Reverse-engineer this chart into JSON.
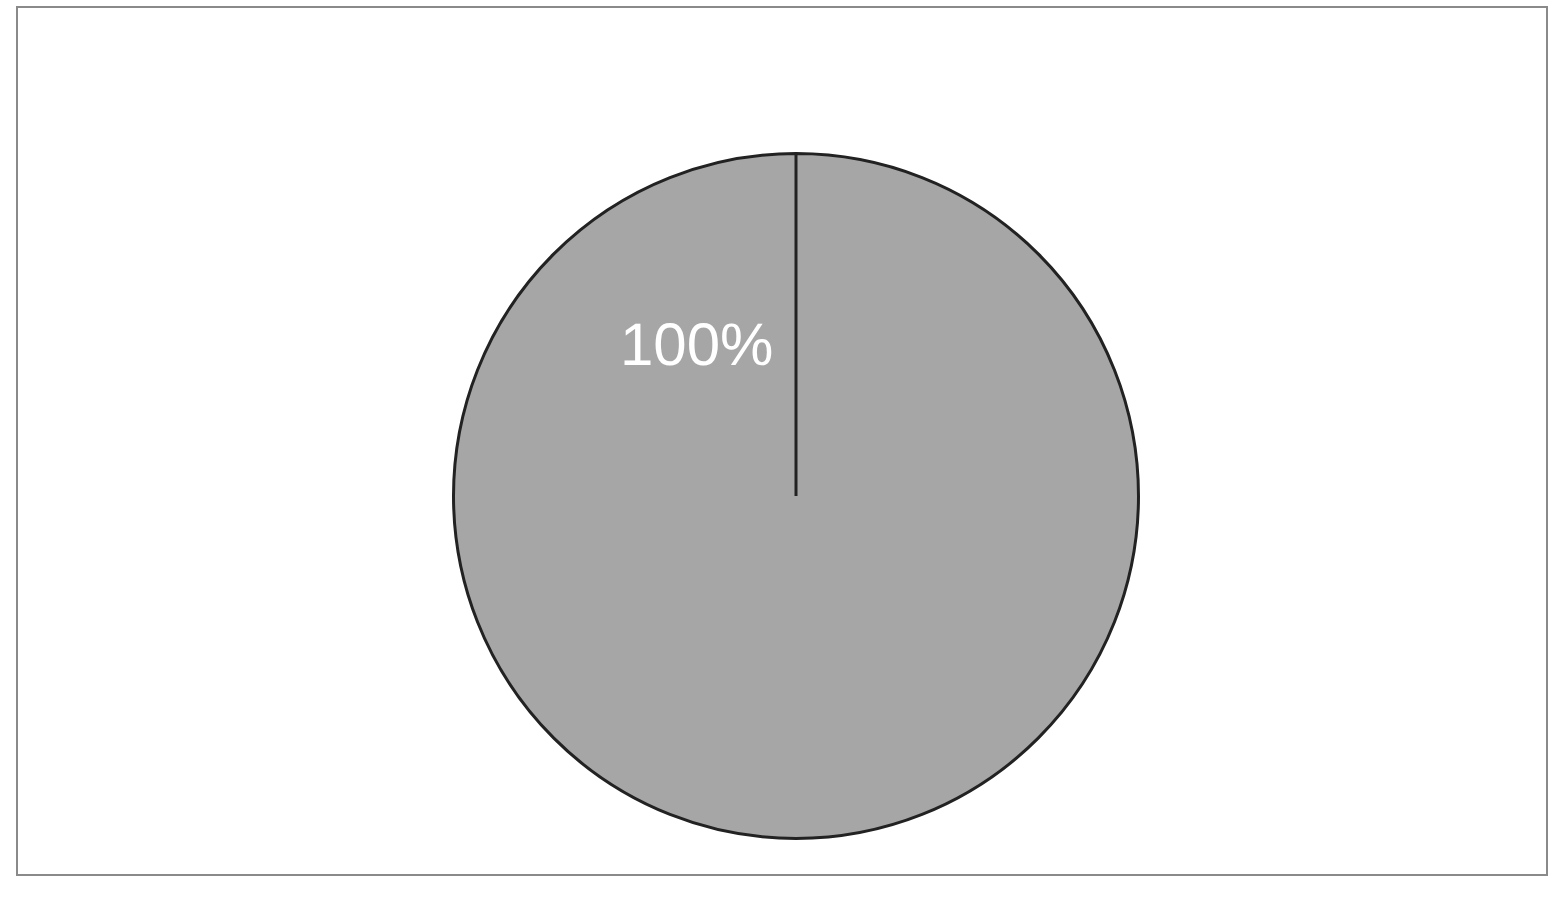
{
  "chart_data": {
    "type": "pie",
    "categories": [
      null
    ],
    "values": [
      100
    ],
    "colors": [
      "#a6a6a6"
    ],
    "value_labels": [
      "100%"
    ],
    "legend": false
  }
}
